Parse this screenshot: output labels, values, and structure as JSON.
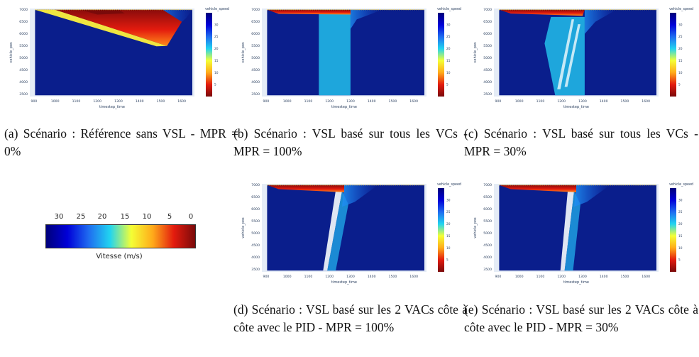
{
  "panels": [
    {
      "id": "a",
      "caption": "(a) Scénario : Référence sans VSL - MPR = 0%",
      "scenario": "no-vsl",
      "xlabel": "timestep_time",
      "ylabel": "vehicle_pos",
      "colorbar_title": "vehicle_speed"
    },
    {
      "id": "b",
      "caption": "(b) Scénario : VSL basé sur tous les VCs - MPR = 100%",
      "scenario": "vsl-all-100",
      "xlabel": "timestep_time",
      "ylabel": "vehicle_pos",
      "colorbar_title": "vehicle_speed"
    },
    {
      "id": "c",
      "caption": "(c) Scénario : VSL basé sur tous les VCs - MPR = 30%",
      "scenario": "vsl-all-30",
      "xlabel": "timestep_time",
      "ylabel": "vehicle_pos",
      "colorbar_title": "vehicle_speed"
    },
    {
      "id": "d",
      "caption": "(d) Scénario : VSL basé sur les 2 VACs côte à côte avec le PID - MPR = 100%",
      "scenario": "vsl-pid-100",
      "xlabel": "timestep_time",
      "ylabel": "vehicle_pos",
      "colorbar_title": "vehicle_speed"
    },
    {
      "id": "e",
      "caption": "(e) Scénario : VSL basé sur les 2 VACs côte à côte avec le PID - MPR = 30%",
      "scenario": "vsl-pid-30",
      "xlabel": "timestep_time",
      "ylabel": "vehicle_pos",
      "colorbar_title": "vehicle_speed"
    }
  ],
  "chart_data": [
    {
      "type": "heatmap",
      "x_ticks": [
        900,
        1000,
        1100,
        1200,
        1300,
        1400,
        1500,
        1600
      ],
      "y_ticks": [
        3500,
        4000,
        4500,
        5000,
        5500,
        6000,
        6500,
        7000
      ],
      "xlim": [
        880,
        1660
      ],
      "ylim": [
        3400,
        7050
      ],
      "colorbar_ticks": [
        5,
        10,
        15,
        20,
        25,
        30
      ],
      "colorscale": [
        "#00007a",
        "#0000d8",
        "#1f6cf0",
        "#21d4f0",
        "#f4ff35",
        "#ffab1a",
        "#e31b0e",
        "#7a0a0a"
      ]
    }
  ],
  "legend": {
    "ticks": [
      "30",
      "25",
      "20",
      "15",
      "10",
      "5",
      "0"
    ],
    "title": "Vitesse (m/s)",
    "gradient": [
      "#00007a",
      "#0000d8",
      "#1f6cf0",
      "#21d4f0",
      "#f4ff35",
      "#ffab1a",
      "#e31b0e",
      "#7a0a0a"
    ]
  }
}
